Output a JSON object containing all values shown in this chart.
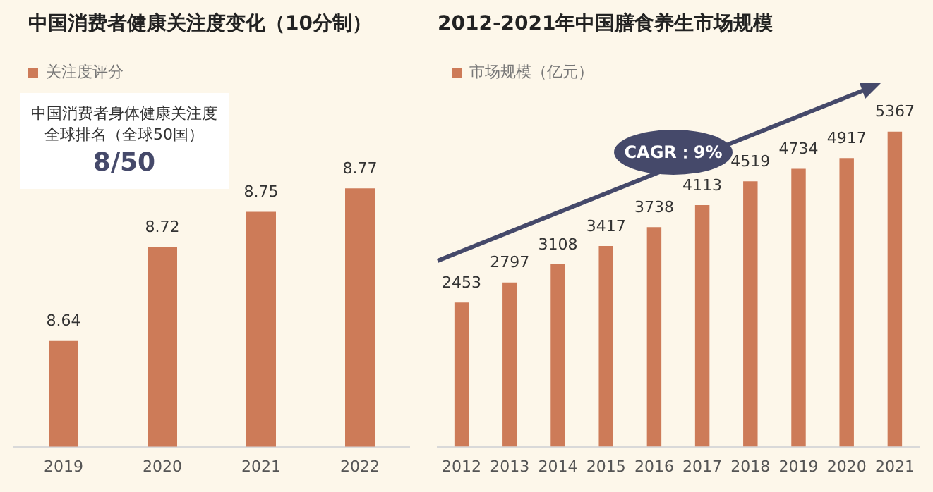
{
  "chart_data": [
    {
      "type": "bar",
      "title": "中国消费者健康关注度变化（10分制）",
      "categories": [
        "2019",
        "2020",
        "2021",
        "2022"
      ],
      "series": [
        {
          "name": "关注度评分",
          "color": "#cd7b58",
          "values": [
            8.64,
            8.72,
            8.75,
            8.77
          ]
        }
      ],
      "ylim": [
        8.55,
        8.85
      ],
      "data_labels": true,
      "legend": "top left",
      "tick_labels": "x",
      "grid": false,
      "annotations": [
        "中国消费者身体健康关注度",
        "全球排名（全球50国）",
        "8/50"
      ]
    },
    {
      "type": "bar",
      "title": "2012-2021年中国膳食养生市场规模",
      "categories": [
        "2012",
        "2013",
        "2014",
        "2015",
        "2016",
        "2017",
        "2018",
        "2019",
        "2020",
        "2021"
      ],
      "series": [
        {
          "name": "市场规模（亿元）",
          "color": "#cd7b58",
          "values": [
            2453,
            2797,
            3108,
            3417,
            3738,
            4113,
            4519,
            4734,
            4917,
            5367
          ]
        }
      ],
      "data_labels": true,
      "legend": "top left",
      "tick_labels": "x",
      "grid": false,
      "annotations": [
        "CAGR：9%"
      ]
    }
  ]
}
